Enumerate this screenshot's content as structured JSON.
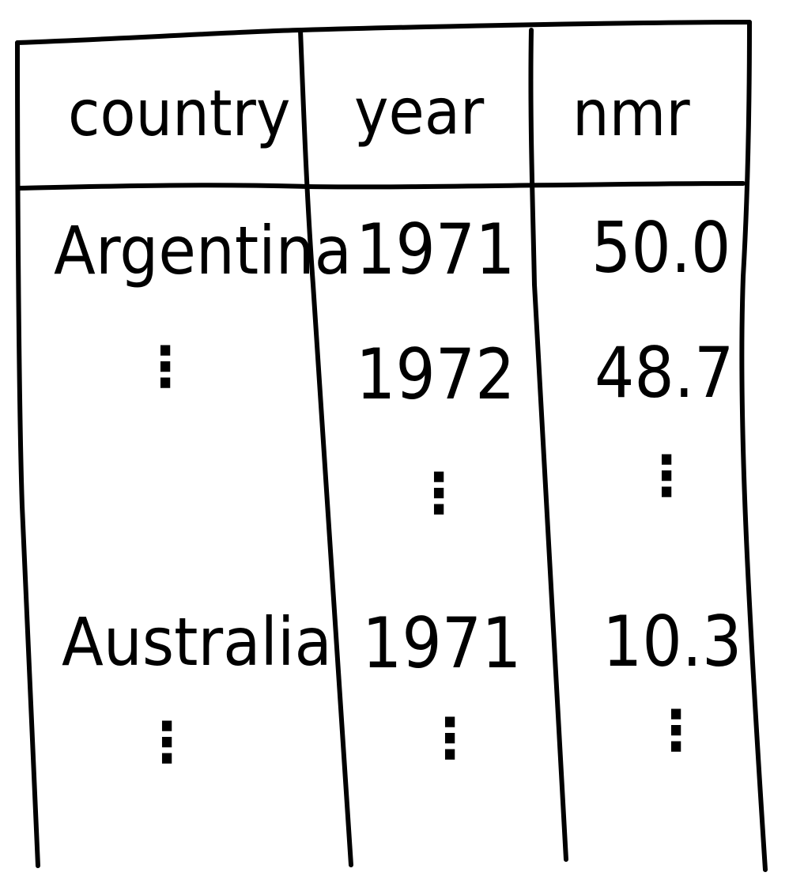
{
  "table": {
    "headers": {
      "country": "country",
      "year": "year",
      "nmr": "nmr"
    },
    "rows": [
      {
        "country": "Argentina",
        "year": "1971",
        "nmr": "50.0"
      },
      {
        "country": "",
        "year": "1972",
        "nmr": "48.7"
      },
      {
        "country": "Australia",
        "year": "1971",
        "nmr": "10.3"
      }
    ],
    "ellipsis": "⋮"
  }
}
